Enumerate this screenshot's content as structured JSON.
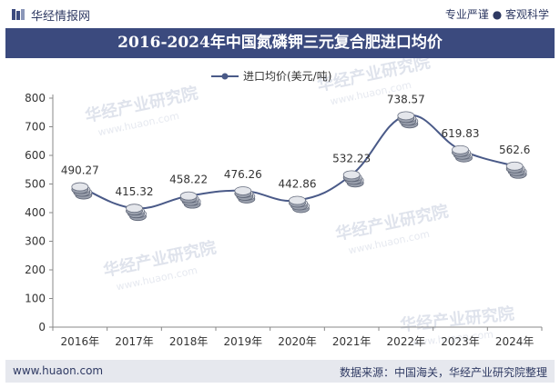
{
  "header": {
    "brand": "华经情报网",
    "tagline": "专业严谨 ● 客观科学"
  },
  "chart_title": "2016-2024年中国氮磷钾三元复合肥进口均价",
  "watermark": {
    "text": "华经产业研究院",
    "url": "www.huaon.com"
  },
  "footer": {
    "url": "www.huaon.com",
    "source": "数据来源：中国海关，华经产业研究院整理"
  },
  "colors": {
    "title_bar": "#3b4a7e",
    "line": "#4a5a88",
    "footer_bg": "#e6e8ee"
  },
  "chart_data": {
    "type": "line",
    "title": "2016-2024年中国氮磷钾三元复合肥进口均价",
    "categories": [
      "2016年",
      "2017年",
      "2018年",
      "2019年",
      "2020年",
      "2021年",
      "2022年",
      "2023年",
      "2024年"
    ],
    "series": [
      {
        "name": "进口均价(美元/吨)",
        "values": [
          490.27,
          415.32,
          458.22,
          476.26,
          442.86,
          532.23,
          738.57,
          619.83,
          562.6
        ],
        "labels": [
          "490.27",
          "415.32",
          "458.22",
          "476.26",
          "442.86",
          "532.23",
          "738.57",
          "619.83",
          "562.6"
        ]
      }
    ],
    "ylim": [
      0,
      800
    ],
    "yticks": [
      0,
      100,
      200,
      300,
      400,
      500,
      600,
      700,
      800
    ],
    "xlabel": "",
    "ylabel": "",
    "legend_position": "top-center",
    "grid": false
  }
}
